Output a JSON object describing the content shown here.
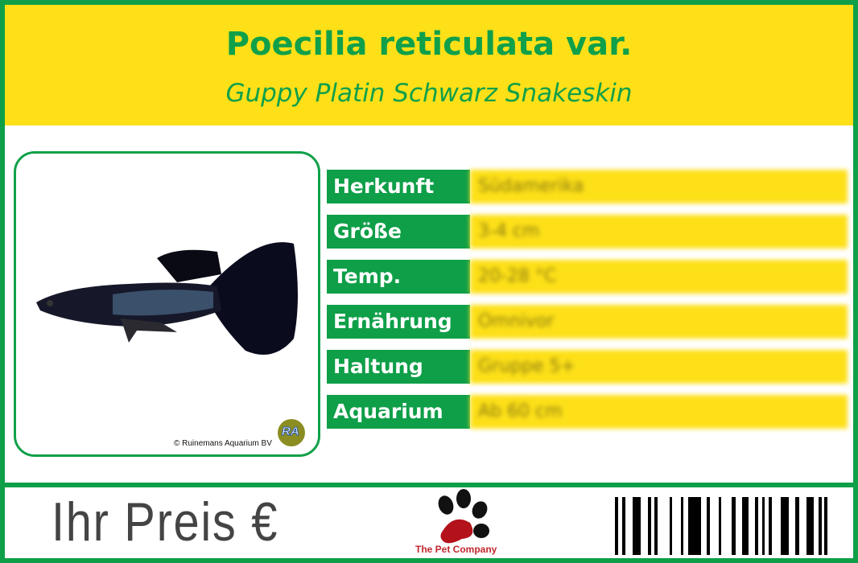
{
  "header": {
    "title": "Poecilia reticulata var.",
    "subtitle": "Guppy Platin Schwarz Snakeskin"
  },
  "photo": {
    "copyright": "© Ruinemans Aquarium BV",
    "logo_text": "RA"
  },
  "facts": [
    {
      "label": "Herkunft",
      "value": "Südamerika"
    },
    {
      "label": "Größe",
      "value": "3-4 cm"
    },
    {
      "label": "Temp.",
      "value": "20-28 °C"
    },
    {
      "label": "Ernährung",
      "value": "Omnivor"
    },
    {
      "label": "Haltung",
      "value": "Gruppe 5+"
    },
    {
      "label": "Aquarium",
      "value": "Ab 60 cm"
    }
  ],
  "footer": {
    "price_label": "Ihr Preis €",
    "brand": "The Pet Company"
  },
  "colors": {
    "green": "#0e9f48",
    "yellow": "#fde018",
    "brand_red": "#c0272d"
  }
}
